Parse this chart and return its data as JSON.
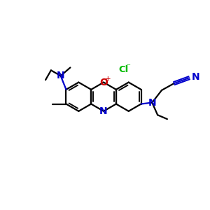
{
  "bg_color": "#ffffff",
  "bond_color": "#000000",
  "n_color": "#0000cc",
  "o_color": "#cc0000",
  "cl_color": "#00bb00",
  "lw": 1.6,
  "fs": 8.5,
  "fig_size": [
    3.0,
    3.0
  ],
  "dpi": 100,
  "xlim": [
    0,
    300
  ],
  "ylim": [
    0,
    300
  ]
}
